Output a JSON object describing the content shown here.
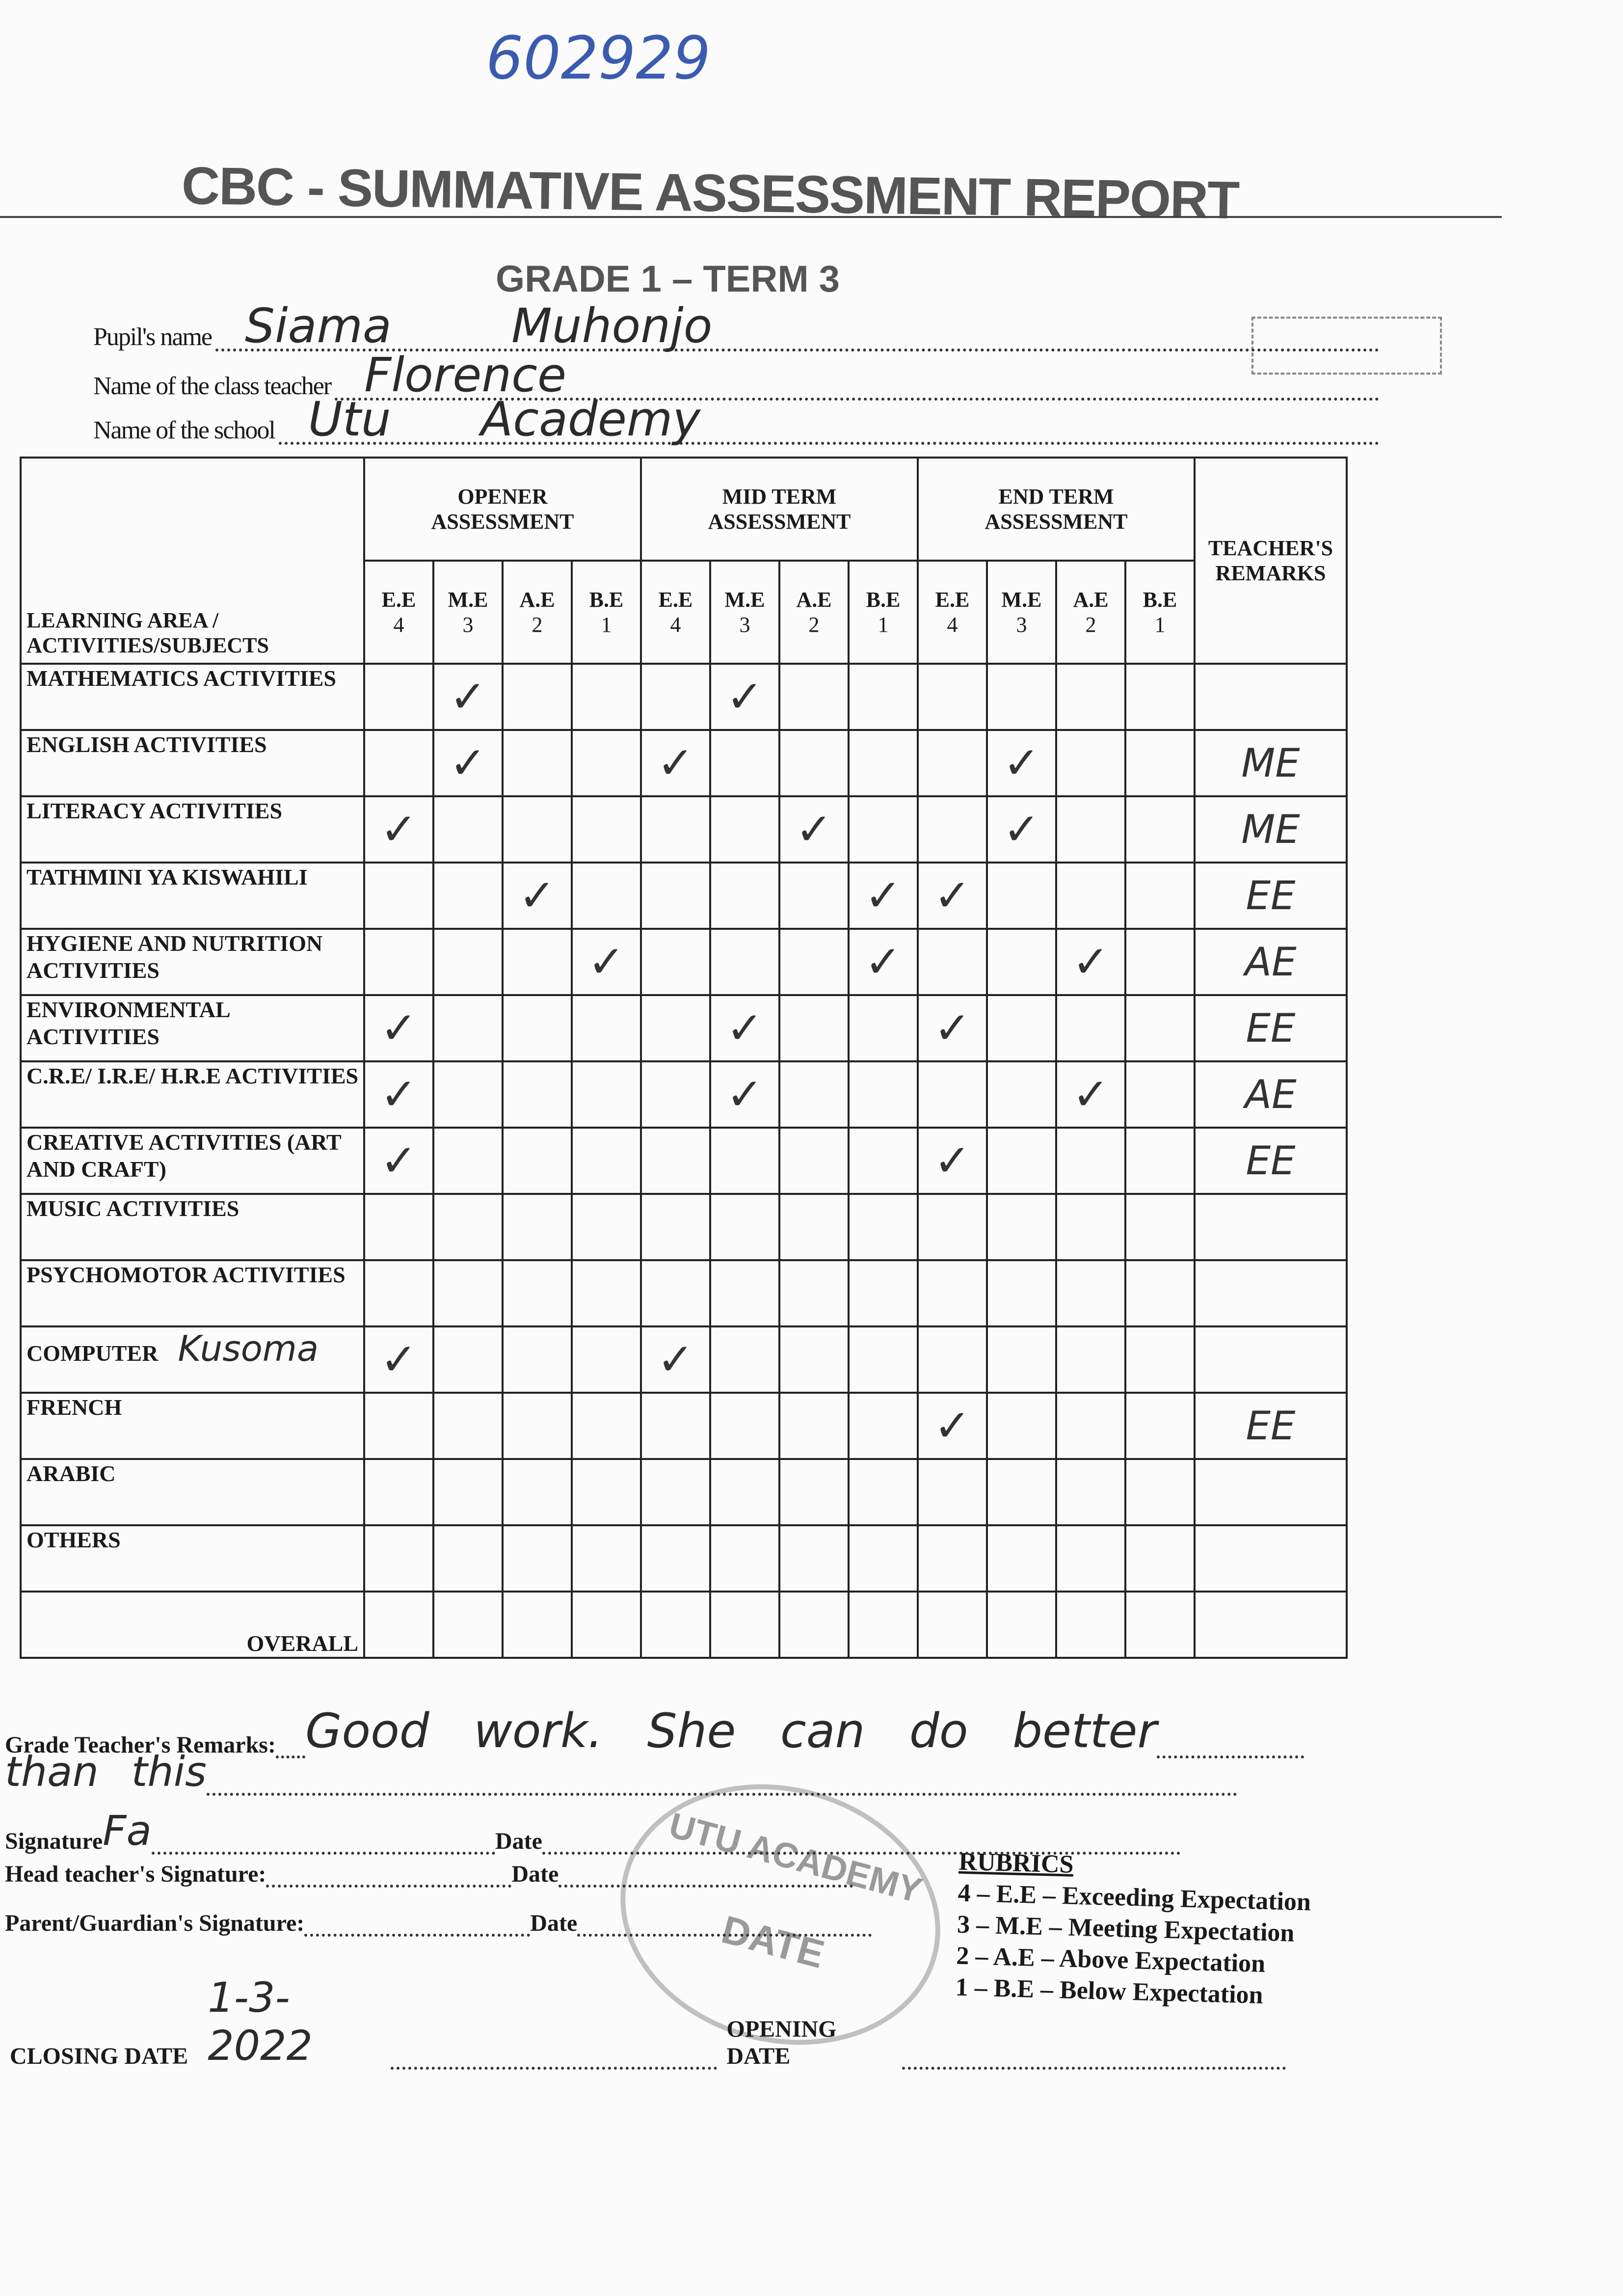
{
  "handwritten_id": "602929",
  "header": {
    "title": "CBC - SUMMATIVE ASSESSMENT REPORT",
    "subtitle": "GRADE 1 – TERM 3"
  },
  "fields": [
    {
      "label": "Pupil's name",
      "value": "Siama        Muhonjo"
    },
    {
      "label": "Name of the class teacher",
      "value": "Florence"
    },
    {
      "label": "Name of the school",
      "value": "Utu      Academy"
    }
  ],
  "table": {
    "subject_header": "LEARNING AREA / ACTIVITIES/SUBJECTS",
    "groups": [
      "OPENER ASSESSMENT",
      "MID TERM ASSESSMENT",
      "END TERM ASSESSMENT"
    ],
    "remarks_header": "TEACHER'S REMARKS",
    "levels": [
      {
        "code": "E.E",
        "score": 4
      },
      {
        "code": "M.E",
        "score": 3
      },
      {
        "code": "A.E",
        "score": 2
      },
      {
        "code": "B.E",
        "score": 1
      },
      {
        "code": "E.E",
        "score": 4
      },
      {
        "code": "M.E",
        "score": 3
      },
      {
        "code": "A.E",
        "score": 2
      },
      {
        "code": "B.E",
        "score": 1
      },
      {
        "code": "E.E",
        "score": 4
      },
      {
        "code": "M.E",
        "score": 3
      },
      {
        "code": "A.E",
        "score": 2
      },
      {
        "code": "B.E",
        "score": 1
      }
    ],
    "rows": [
      {
        "subject": "MATHEMATICS ACTIVITIES",
        "note": null,
        "cells": [
          null,
          "✓",
          null,
          null,
          null,
          "✓",
          null,
          null,
          null,
          null,
          null,
          null
        ],
        "remark": null
      },
      {
        "subject": "ENGLISH ACTIVITIES",
        "note": null,
        "cells": [
          null,
          "✓",
          null,
          null,
          "✓",
          null,
          null,
          null,
          null,
          "✓",
          null,
          null
        ],
        "remark": "ME"
      },
      {
        "subject": "LITERACY ACTIVITIES",
        "note": null,
        "cells": [
          "✓",
          null,
          null,
          null,
          null,
          null,
          "✓",
          null,
          null,
          "✓",
          null,
          null
        ],
        "remark": "ME"
      },
      {
        "subject": "TATHMINI YA KISWAHILI",
        "note": null,
        "cells": [
          null,
          null,
          "✓",
          null,
          null,
          null,
          null,
          "✓",
          "✓",
          null,
          null,
          null
        ],
        "remark": "EE"
      },
      {
        "subject": "HYGIENE AND NUTRITION ACTIVITIES",
        "note": null,
        "cells": [
          null,
          null,
          null,
          "✓",
          null,
          null,
          null,
          "✓",
          null,
          null,
          "✓",
          null
        ],
        "remark": "AE"
      },
      {
        "subject": "ENVIRONMENTAL ACTIVITIES",
        "note": null,
        "cells": [
          "✓",
          null,
          null,
          null,
          null,
          "✓",
          null,
          null,
          "✓",
          null,
          null,
          null
        ],
        "remark": "EE"
      },
      {
        "subject": "C.R.E/ I.R.E/ H.R.E ACTIVITIES",
        "note": null,
        "cells": [
          "✓",
          null,
          null,
          null,
          null,
          "✓",
          null,
          null,
          null,
          null,
          "✓",
          null
        ],
        "remark": "AE"
      },
      {
        "subject": "CREATIVE ACTIVITIES (ART AND CRAFT)",
        "note": null,
        "cells": [
          "✓",
          null,
          null,
          null,
          null,
          null,
          null,
          null,
          "✓",
          null,
          null,
          null
        ],
        "remark": "EE"
      },
      {
        "subject": "MUSIC ACTIVITIES",
        "note": null,
        "cells": [
          null,
          null,
          null,
          null,
          null,
          null,
          null,
          null,
          null,
          null,
          null,
          null
        ],
        "remark": null
      },
      {
        "subject": "PSYCHOMOTOR ACTIVITIES",
        "note": null,
        "cells": [
          null,
          null,
          null,
          null,
          null,
          null,
          null,
          null,
          null,
          null,
          null,
          null
        ],
        "remark": null
      },
      {
        "subject": "COMPUTER",
        "note": "Kusoma",
        "cells": [
          "✓",
          null,
          null,
          null,
          "✓",
          null,
          null,
          null,
          null,
          null,
          null,
          null
        ],
        "remark": null
      },
      {
        "subject": "FRENCH",
        "note": null,
        "cells": [
          null,
          null,
          null,
          null,
          null,
          null,
          null,
          null,
          "✓",
          null,
          null,
          null
        ],
        "remark": "EE"
      },
      {
        "subject": "ARABIC",
        "note": null,
        "cells": [
          null,
          null,
          null,
          null,
          null,
          null,
          null,
          null,
          null,
          null,
          null,
          null
        ],
        "remark": null
      },
      {
        "subject": "OTHERS",
        "note": null,
        "cells": [
          null,
          null,
          null,
          null,
          null,
          null,
          null,
          null,
          null,
          null,
          null,
          null
        ],
        "remark": null
      },
      {
        "subject": "OVERALL",
        "note": null,
        "cells": [
          null,
          null,
          null,
          null,
          null,
          null,
          null,
          null,
          null,
          null,
          null,
          null
        ],
        "remark": null
      }
    ]
  },
  "footer": {
    "remarks_label": "Grade Teacher's Remarks:",
    "remarks_value": "Good work. She can do better",
    "remarks_value_2": "than this",
    "signature_label": "Signature",
    "signature_value": "Fa",
    "head_label": "Head teacher's Signature:",
    "parent_label": "Parent/Guardian's Signature:",
    "date_label": "Date",
    "closing_label": "CLOSING DATE",
    "closing_value": "1-3-2022",
    "opening_label": "OPENING DATE"
  },
  "stamp": {
    "name": "UTU ACADEMY",
    "date": "DATE"
  },
  "rubrics": {
    "title": "RUBRICS",
    "items": [
      "4 – E.E – Exceeding Expectation",
      "3 – M.E – Meeting Expectation",
      "2 – A.E – Above Expectation",
      "1 – B.E – Below Expectation"
    ]
  }
}
